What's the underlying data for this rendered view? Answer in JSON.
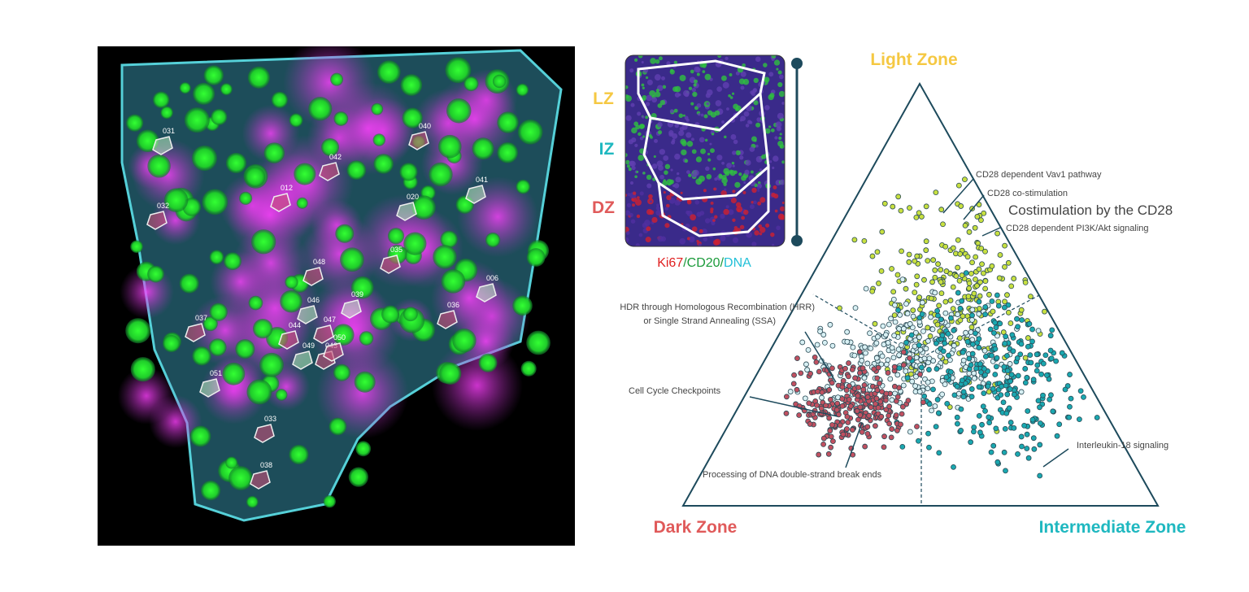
{
  "tissue": {
    "roi_labels": [
      "031",
      "040",
      "042",
      "041",
      "032",
      "012",
      "020",
      "035",
      "037",
      "039",
      "036",
      "048",
      "046",
      "047",
      "044",
      "049",
      "043",
      "050",
      "051",
      "033",
      "038",
      "006"
    ]
  },
  "inset": {
    "zones": [
      "LZ",
      "IZ",
      "DZ"
    ],
    "stain": [
      "Ki67",
      "/",
      "CD20",
      "/",
      "DNA"
    ]
  },
  "ternary": {
    "vertices": [
      "Light Zone",
      "Dark Zone",
      "Intermediate  Zone"
    ],
    "annotations": [
      "CD28 dependent Vav1 pathway",
      "CD28 co-stimulation",
      "Costimulation by the CD28",
      "CD28 dependent PI3K/Akt signaling",
      "HDR through Homologous Recombination (HRR)",
      "or Single Strand Annealing (SSA)",
      "Cell Cycle Checkpoints",
      "Processing of DNA double-strand break ends",
      "Interleukin-18 signaling"
    ]
  }
}
